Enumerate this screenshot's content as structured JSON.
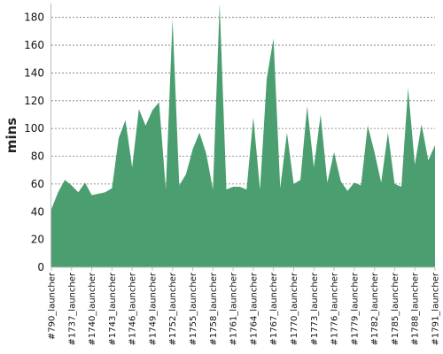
{
  "chart_data": {
    "type": "area",
    "title": "",
    "xlabel": "",
    "ylabel": "mins",
    "ylim": [
      0,
      190
    ],
    "yticks": [
      0,
      20,
      40,
      60,
      80,
      100,
      120,
      140,
      160,
      180
    ],
    "grid": true,
    "fill_color": "#4a9e6f",
    "x_tick_labels": [
      "#790_launcher",
      "#1737_launcher",
      "#1740_launcher",
      "#1743_launcher",
      "#1746_launcher",
      "#1749_launcher",
      "#1752_launcher",
      "#1755_launcher",
      "#1758_launcher",
      "#1761_launcher",
      "#1764_launcher",
      "#1767_launcher",
      "#1770_launcher",
      "#1773_launcher",
      "#1776_launcher",
      "#1779_launcher",
      "#1782_launcher",
      "#1785_launcher",
      "#1788_launcher",
      "#1791_launcher"
    ],
    "values": [
      42,
      54,
      63,
      59,
      54,
      61,
      52,
      53,
      54,
      57,
      93,
      106,
      72,
      114,
      102,
      113,
      119,
      56,
      179,
      59,
      67,
      85,
      97,
      82,
      56,
      190,
      56,
      58,
      58,
      56,
      108,
      56,
      136,
      165,
      57,
      97,
      60,
      63,
      116,
      72,
      110,
      61,
      83,
      62,
      55,
      61,
      59,
      102,
      83,
      61,
      97,
      60,
      58,
      129,
      74,
      103,
      77,
      88
    ]
  }
}
